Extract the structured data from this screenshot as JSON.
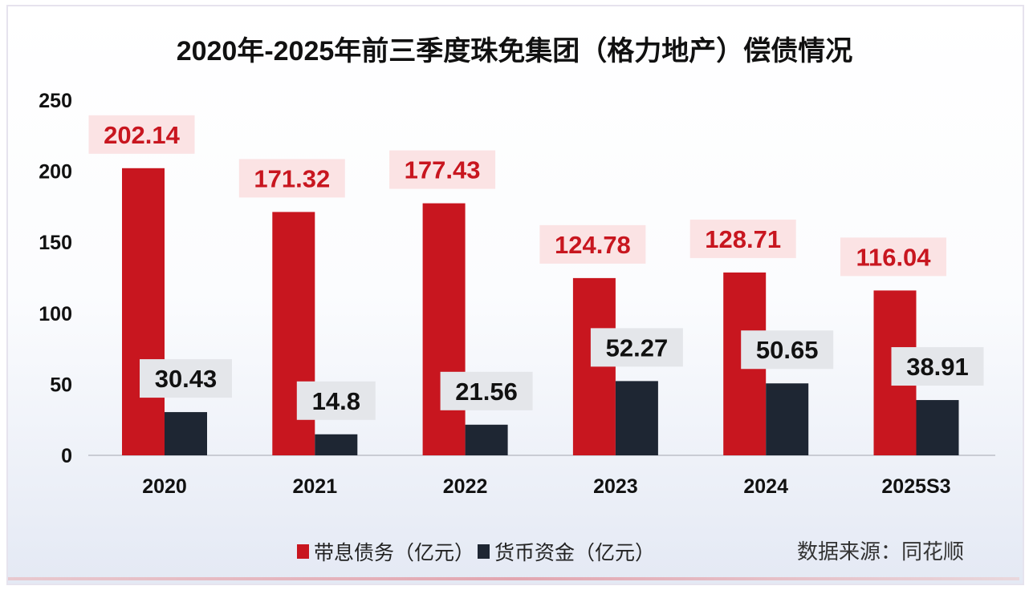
{
  "chart_data": {
    "type": "bar",
    "title": "2020年-2025年前三季度珠免集团（格力地产）偿债情况",
    "categories": [
      "2020",
      "2021",
      "2022",
      "2023",
      "2024",
      "2025S3"
    ],
    "series": [
      {
        "name": "带息债务（亿元）",
        "color": "#c8161f",
        "values": [
          202.14,
          171.32,
          177.43,
          124.78,
          128.71,
          116.04
        ],
        "labels": [
          "202.14",
          "171.32",
          "177.43",
          "124.78",
          "128.71",
          "116.04"
        ]
      },
      {
        "name": "货币资金（亿元）",
        "color": "#1e2633",
        "values": [
          30.43,
          14.8,
          21.56,
          52.27,
          50.65,
          38.91
        ],
        "labels": [
          "30.43",
          "14.8",
          "21.56",
          "52.27",
          "50.65",
          "38.91"
        ]
      }
    ],
    "ylim": [
      0,
      250
    ],
    "yticks": [
      "0",
      "50",
      "100",
      "150",
      "200",
      "250"
    ],
    "grid": false,
    "legend_position": "bottom",
    "source": "数据来源：同花顺"
  }
}
